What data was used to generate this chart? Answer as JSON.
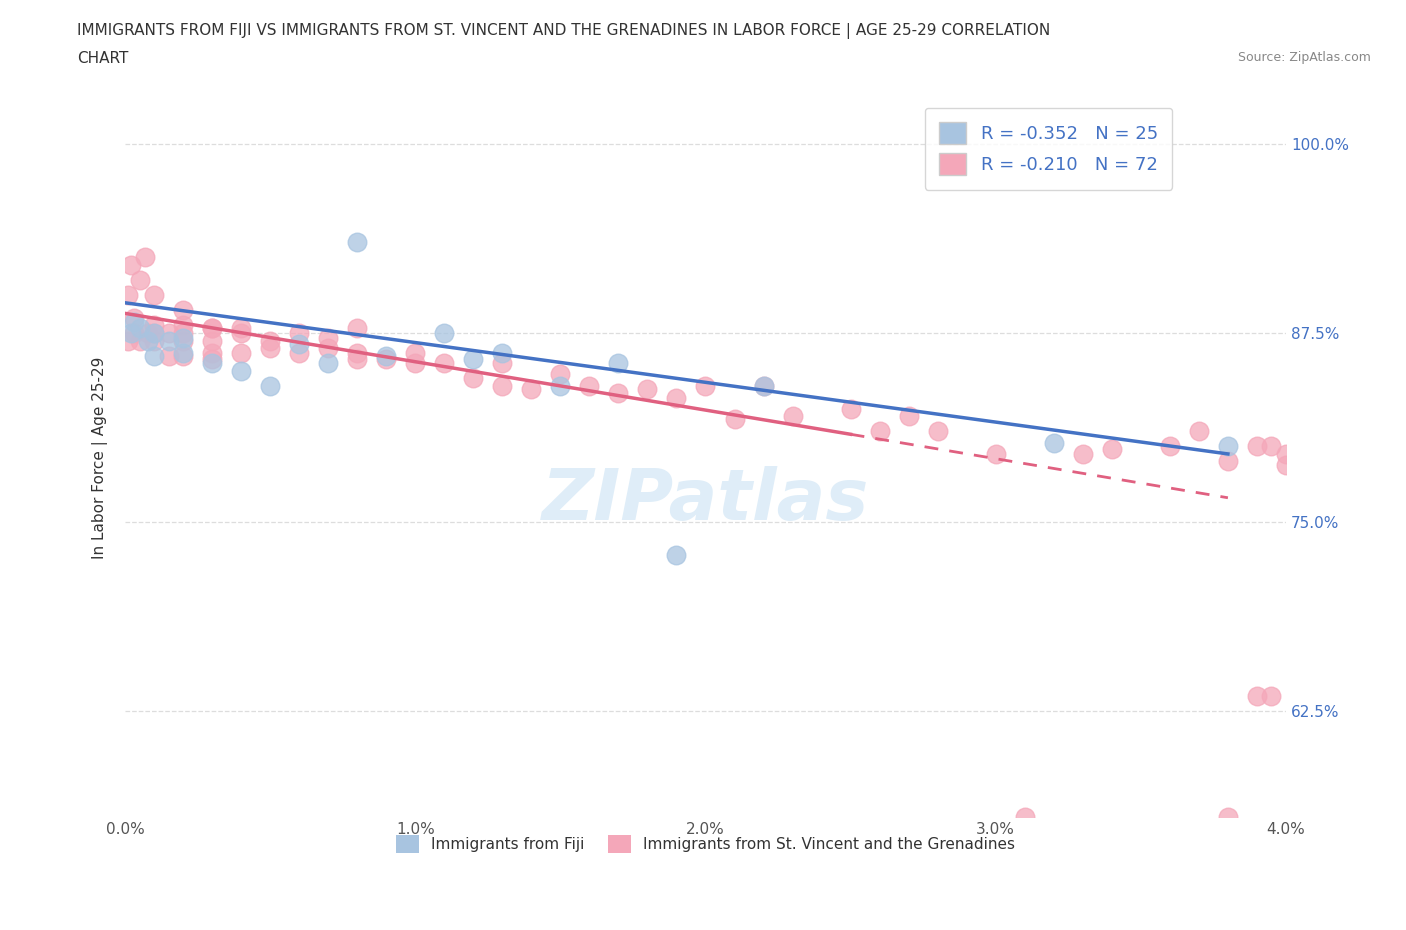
{
  "title_line1": "IMMIGRANTS FROM FIJI VS IMMIGRANTS FROM ST. VINCENT AND THE GRENADINES IN LABOR FORCE | AGE 25-29 CORRELATION",
  "title_line2": "CHART",
  "source_text": "Source: ZipAtlas.com",
  "ylabel": "In Labor Force | Age 25-29",
  "xlim": [
    0.0,
    0.04
  ],
  "ylim": [
    0.555,
    1.03
  ],
  "legend_fiji_label": "R = -0.352   N = 25",
  "legend_svg_label": "R = -0.210   N = 72",
  "fiji_color": "#a8c4e0",
  "svg_color": "#f4a7b9",
  "fiji_trendline_color": "#4472c4",
  "svg_trendline_color": "#e06080",
  "fiji_trendline_x0": 0.0,
  "fiji_trendline_y0": 0.895,
  "fiji_trendline_x1": 0.038,
  "fiji_trendline_y1": 0.795,
  "svg_trendline_x0": 0.0,
  "svg_trendline_y0": 0.888,
  "svg_trendline_solid_x1": 0.025,
  "svg_trendline_solid_y1": 0.808,
  "svg_trendline_x1": 0.038,
  "svg_trendline_y1": 0.766,
  "fiji_scatter_x": [
    0.0002,
    0.0003,
    0.0005,
    0.0008,
    0.001,
    0.001,
    0.0015,
    0.002,
    0.002,
    0.003,
    0.004,
    0.005,
    0.006,
    0.007,
    0.008,
    0.009,
    0.011,
    0.012,
    0.013,
    0.015,
    0.017,
    0.019,
    0.022,
    0.032,
    0.038
  ],
  "fiji_scatter_y": [
    0.875,
    0.882,
    0.878,
    0.87,
    0.86,
    0.875,
    0.87,
    0.862,
    0.872,
    0.855,
    0.85,
    0.84,
    0.868,
    0.855,
    0.935,
    0.86,
    0.875,
    0.858,
    0.862,
    0.84,
    0.855,
    0.728,
    0.84,
    0.802,
    0.8
  ],
  "svg_scatter_x": [
    0.0001,
    0.0001,
    0.0002,
    0.0003,
    0.0003,
    0.0005,
    0.0005,
    0.0007,
    0.0008,
    0.001,
    0.001,
    0.001,
    0.001,
    0.0015,
    0.0015,
    0.002,
    0.002,
    0.002,
    0.002,
    0.002,
    0.003,
    0.003,
    0.003,
    0.003,
    0.003,
    0.004,
    0.004,
    0.004,
    0.005,
    0.005,
    0.006,
    0.006,
    0.007,
    0.007,
    0.008,
    0.008,
    0.008,
    0.009,
    0.01,
    0.01,
    0.011,
    0.012,
    0.013,
    0.013,
    0.014,
    0.015,
    0.016,
    0.017,
    0.018,
    0.019,
    0.02,
    0.021,
    0.022,
    0.023,
    0.025,
    0.026,
    0.027,
    0.028,
    0.03,
    0.031,
    0.033,
    0.034,
    0.036,
    0.037,
    0.038,
    0.038,
    0.039,
    0.0395,
    0.04,
    0.04,
    0.0395,
    0.039
  ],
  "svg_scatter_y": [
    0.87,
    0.9,
    0.92,
    0.875,
    0.885,
    0.87,
    0.91,
    0.925,
    0.875,
    0.875,
    0.88,
    0.87,
    0.9,
    0.875,
    0.86,
    0.875,
    0.87,
    0.86,
    0.88,
    0.89,
    0.878,
    0.862,
    0.878,
    0.858,
    0.87,
    0.878,
    0.862,
    0.875,
    0.87,
    0.865,
    0.875,
    0.862,
    0.865,
    0.872,
    0.862,
    0.878,
    0.858,
    0.858,
    0.862,
    0.855,
    0.855,
    0.845,
    0.84,
    0.855,
    0.838,
    0.848,
    0.84,
    0.835,
    0.838,
    0.832,
    0.84,
    0.818,
    0.84,
    0.82,
    0.825,
    0.81,
    0.82,
    0.81,
    0.795,
    0.555,
    0.795,
    0.798,
    0.8,
    0.81,
    0.555,
    0.79,
    0.8,
    0.8,
    0.795,
    0.788,
    0.635,
    0.635
  ],
  "watermark_text": "ZIPatlas",
  "background_color": "#ffffff",
  "grid_color": "#dddddd",
  "bottom_legend_fiji": "Immigrants from Fiji",
  "bottom_legend_svg": "Immigrants from St. Vincent and the Grenadines"
}
